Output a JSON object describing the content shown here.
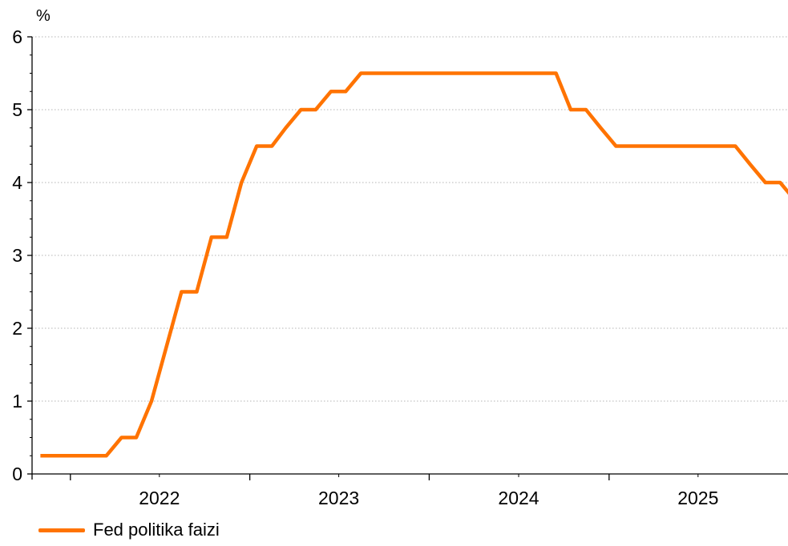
{
  "chart_data": {
    "type": "line",
    "ylabel": "%",
    "ylim": [
      0,
      6
    ],
    "yticks": [
      0,
      1,
      2,
      3,
      4,
      5,
      6
    ],
    "xlim": [
      "2021-10-15",
      "2025-12-31"
    ],
    "x_major_ticks": [
      "2022-01-01",
      "2023-01-01",
      "2024-01-01",
      "2025-01-01"
    ],
    "x_minor_ticks": [
      "2022-07-01",
      "2023-07-01",
      "2024-07-01",
      "2025-07-01"
    ],
    "x_tick_labels": [
      {
        "label": "2022",
        "at": "2022-07-01"
      },
      {
        "label": "2023",
        "at": "2023-07-01"
      },
      {
        "label": "2024",
        "at": "2024-07-01"
      },
      {
        "label": "2025",
        "at": "2025-07-01"
      }
    ],
    "grid": true,
    "legend_position": "bottom-left",
    "series": [
      {
        "name": "Fed politika faizi",
        "color": "#FF7300",
        "points": [
          [
            "2021-11-01",
            0.25
          ],
          [
            "2022-03-15",
            0.25
          ],
          [
            "2022-04-15",
            0.5
          ],
          [
            "2022-05-15",
            0.5
          ],
          [
            "2022-06-15",
            1.0
          ],
          [
            "2022-08-15",
            2.5
          ],
          [
            "2022-09-15",
            2.5
          ],
          [
            "2022-10-15",
            3.25
          ],
          [
            "2022-11-15",
            3.25
          ],
          [
            "2022-12-15",
            4.0
          ],
          [
            "2023-01-15",
            4.5
          ],
          [
            "2023-02-15",
            4.5
          ],
          [
            "2023-03-15",
            4.75
          ],
          [
            "2023-04-15",
            5.0
          ],
          [
            "2023-05-15",
            5.0
          ],
          [
            "2023-06-15",
            5.25
          ],
          [
            "2023-07-15",
            5.25
          ],
          [
            "2023-08-15",
            5.5
          ],
          [
            "2024-09-15",
            5.5
          ],
          [
            "2024-10-15",
            5.0
          ],
          [
            "2024-11-15",
            5.0
          ],
          [
            "2024-12-15",
            4.75
          ],
          [
            "2025-01-15",
            4.5
          ],
          [
            "2025-09-15",
            4.5
          ],
          [
            "2025-10-15",
            4.25
          ],
          [
            "2025-11-15",
            4.0
          ],
          [
            "2025-12-15",
            4.0
          ],
          [
            "2026-01-15",
            3.75
          ],
          [
            "2026-03-31",
            3.75
          ]
        ]
      }
    ]
  }
}
